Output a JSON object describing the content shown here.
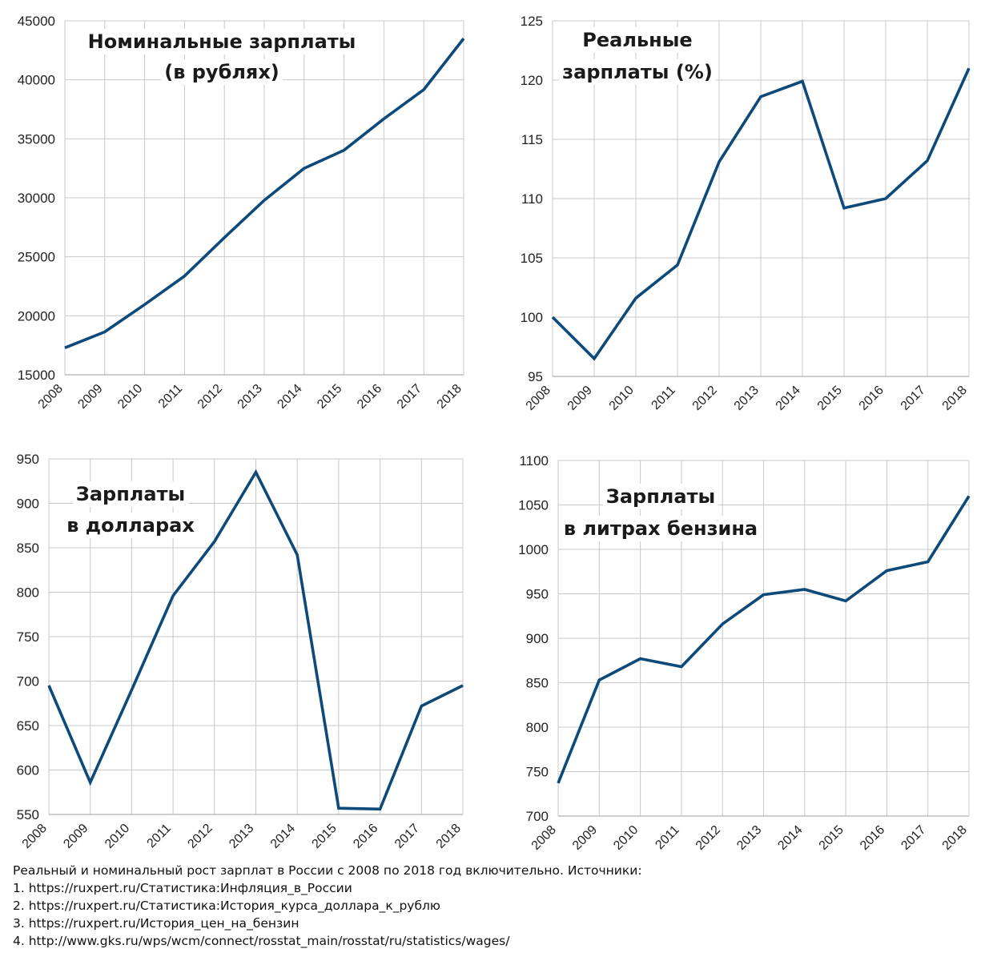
{
  "chart_data": [
    {
      "type": "line",
      "title_lines": [
        "Номинальные зарплаты",
        "(в рублях)"
      ],
      "categories": [
        "2008",
        "2009",
        "2010",
        "2011",
        "2012",
        "2013",
        "2014",
        "2015",
        "2016",
        "2017",
        "2018"
      ],
      "values": [
        17290,
        18640,
        20950,
        23370,
        26630,
        29790,
        32500,
        34030,
        36700,
        39170,
        43500
      ],
      "ylim": [
        15000,
        45000
      ],
      "yticks": [
        15000,
        20000,
        25000,
        30000,
        35000,
        40000,
        45000
      ],
      "grid": true,
      "color": "#0d4a7a"
    },
    {
      "type": "line",
      "title_lines": [
        "Реальные",
        "зарплаты (%)"
      ],
      "categories": [
        "2008",
        "2009",
        "2010",
        "2011",
        "2012",
        "2013",
        "2014",
        "2015",
        "2016",
        "2017",
        "2018"
      ],
      "values": [
        100,
        96.5,
        101.6,
        104.4,
        113.1,
        118.6,
        119.9,
        109.2,
        110,
        113.2,
        121
      ],
      "ylim": [
        95,
        125
      ],
      "yticks": [
        95,
        100,
        105,
        110,
        115,
        120,
        125
      ],
      "grid": true,
      "color": "#0d4a7a"
    },
    {
      "type": "line",
      "title_lines": [
        "Зарплаты",
        "в долларах"
      ],
      "categories": [
        "2008",
        "2009",
        "2010",
        "2011",
        "2012",
        "2013",
        "2014",
        "2015",
        "2016",
        "2017",
        "2018"
      ],
      "values": [
        695,
        586,
        690,
        796,
        857,
        935,
        842,
        557,
        556,
        672,
        695
      ],
      "ylim": [
        550,
        950
      ],
      "yticks": [
        550,
        600,
        650,
        700,
        750,
        800,
        850,
        900,
        950
      ],
      "grid": true,
      "color": "#0d4a7a"
    },
    {
      "type": "line",
      "title_lines": [
        "Зарплаты",
        "в литрах бензина"
      ],
      "categories": [
        "2008",
        "2009",
        "2010",
        "2011",
        "2012",
        "2013",
        "2014",
        "2015",
        "2016",
        "2017",
        "2018"
      ],
      "values": [
        737,
        853,
        877,
        868,
        916,
        949,
        955,
        942,
        976,
        986,
        1060
      ],
      "ylim": [
        700,
        1100
      ],
      "yticks": [
        700,
        750,
        800,
        850,
        900,
        950,
        1000,
        1050,
        1100
      ],
      "grid": true,
      "color": "#0d4a7a"
    }
  ],
  "caption": {
    "intro": "Реальный и номинальный рост зарплат в России с 2008 по 2018 год включительно. Источники:",
    "sources": [
      "1. https://ruxpert.ru/Статистика:Инфляция_в_России",
      "2. https://ruxpert.ru/Статистика:История_курса_доллара_к_рублю",
      "3. https://ruxpert.ru/История_цен_на_бензин",
      "4. http://www.gks.ru/wps/wcm/connect/rosstat_main/rosstat/ru/statistics/wages/"
    ]
  }
}
